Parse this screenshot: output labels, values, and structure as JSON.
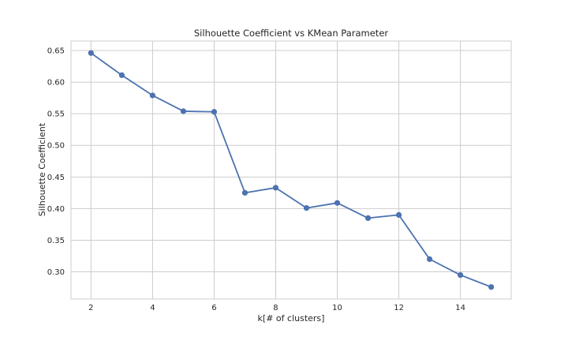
{
  "chart_data": {
    "type": "line",
    "title": "Silhouette Coefficient vs KMean Parameter",
    "xlabel": "k[# of clusters]",
    "ylabel": "Silhouette Coefficient",
    "x": [
      2,
      3,
      4,
      5,
      6,
      7,
      8,
      9,
      10,
      11,
      12,
      13,
      14,
      15
    ],
    "series": [
      {
        "values": [
          0.646,
          0.611,
          0.579,
          0.554,
          0.553,
          0.425,
          0.433,
          0.401,
          0.409,
          0.385,
          0.39,
          0.32,
          0.295,
          0.276
        ],
        "color": "#4c72b0",
        "marker": "circle"
      }
    ],
    "xlim": [
      1.35,
      15.65
    ],
    "ylim": [
      0.257,
      0.665
    ],
    "xticks": [
      2,
      4,
      6,
      8,
      10,
      12,
      14
    ],
    "xtick_labels": [
      "2",
      "4",
      "6",
      "8",
      "10",
      "12",
      "14"
    ],
    "yticks": [
      0.3,
      0.35,
      0.4,
      0.45,
      0.5,
      0.55,
      0.6,
      0.65
    ],
    "ytick_labels": [
      "0.30",
      "0.35",
      "0.40",
      "0.45",
      "0.50",
      "0.55",
      "0.60",
      "0.65"
    ],
    "grid": true,
    "legend": false,
    "style": {
      "background": "#ffffff",
      "grid_color": "#cccccc",
      "spine_color": "#cccccc"
    }
  }
}
